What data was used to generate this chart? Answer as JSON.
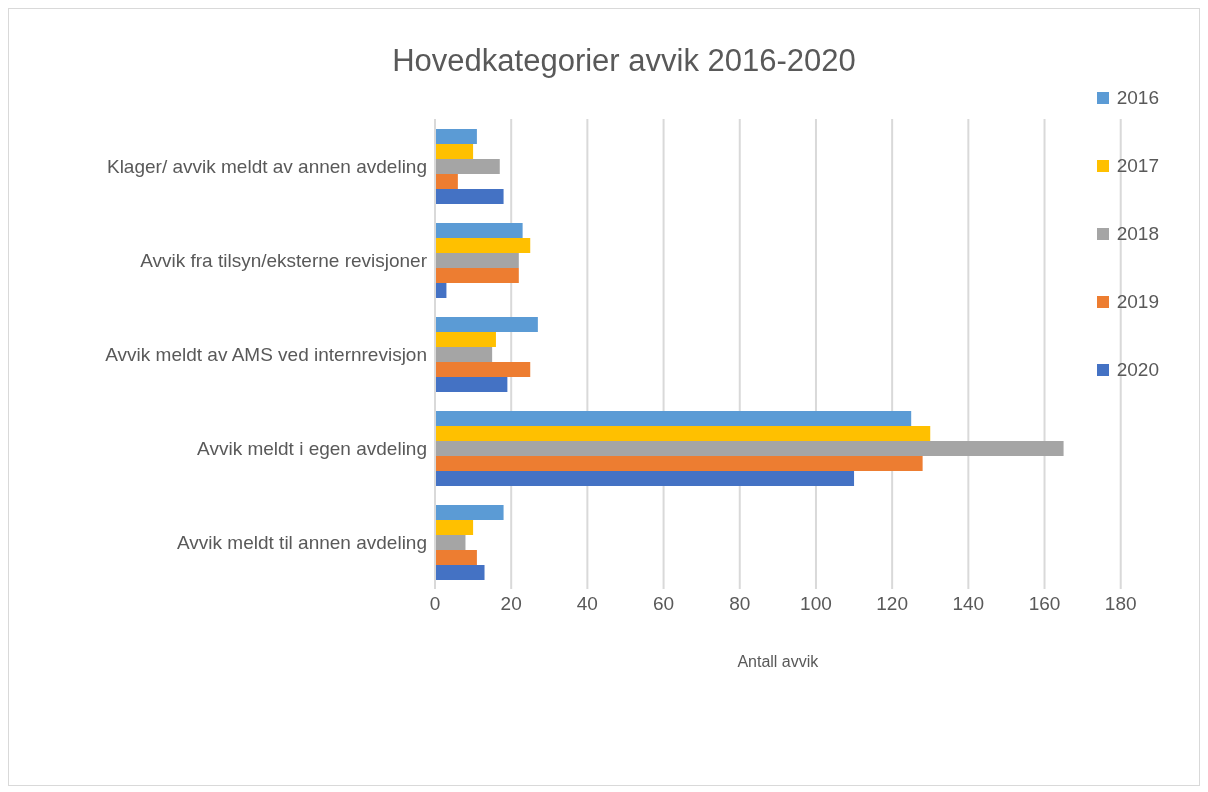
{
  "chart_data": {
    "type": "bar",
    "orientation": "horizontal",
    "title": "Hovedkategorier avvik 2016-2020",
    "xlabel": "Antall avvik",
    "categories": [
      "Klager/ avvik meldt av annen avdeling",
      "Avvik fra tilsyn/eksterne revisjoner",
      "Avvik meldt av AMS ved internrevisjon",
      "Avvik meldt i egen avdeling",
      "Avvik meldt til annen avdeling"
    ],
    "series": [
      {
        "name": "2016",
        "color": "#5b9bd5",
        "values": [
          11,
          23,
          27,
          125,
          18
        ]
      },
      {
        "name": "2017",
        "color": "#ffc000",
        "values": [
          10,
          25,
          16,
          130,
          10
        ]
      },
      {
        "name": "2018",
        "color": "#a5a5a5",
        "values": [
          17,
          22,
          15,
          165,
          8
        ]
      },
      {
        "name": "2019",
        "color": "#ed7d31",
        "values": [
          6,
          22,
          25,
          128,
          11
        ]
      },
      {
        "name": "2020",
        "color": "#4472c4",
        "values": [
          18,
          3,
          19,
          110,
          13
        ]
      }
    ],
    "xlim": [
      0,
      180
    ],
    "xticks": [
      0,
      20,
      40,
      60,
      80,
      100,
      120,
      140,
      160,
      180
    ],
    "grid": "x",
    "legend": "right"
  }
}
